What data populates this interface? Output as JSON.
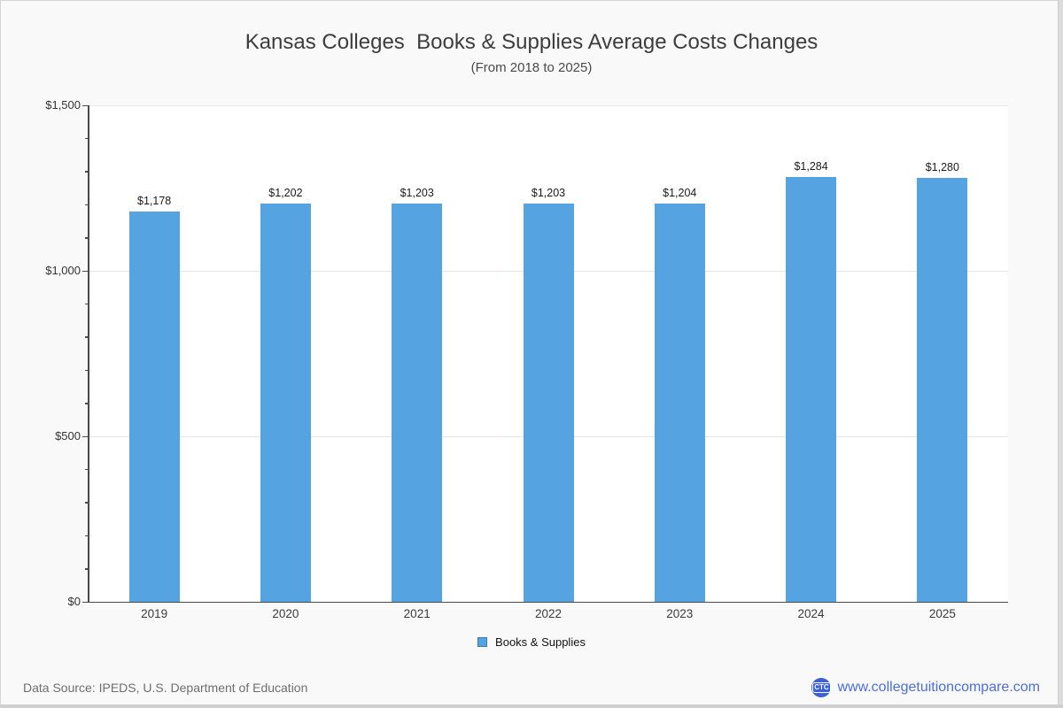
{
  "title": "Kansas Colleges  Books & Supplies Average Costs Changes",
  "subtitle": "(From 2018 to 2025)",
  "chart_data": {
    "type": "bar",
    "categories": [
      "2019",
      "2020",
      "2021",
      "2022",
      "2023",
      "2024",
      "2025"
    ],
    "series": [
      {
        "name": "Books & Supplies",
        "values": [
          1178,
          1202,
          1203,
          1203,
          1204,
          1284,
          1280
        ],
        "value_labels": [
          "$1,178",
          "$1,202",
          "$1,203",
          "$1,203",
          "$1,204",
          "$1,284",
          "$1,280"
        ]
      }
    ],
    "title": "Kansas Colleges  Books & Supplies Average Costs Changes",
    "subtitle": "(From 2018 to 2025)",
    "xlabel": "",
    "ylabel": "",
    "ylim": [
      0,
      1500
    ],
    "y_major_step": 500,
    "y_minor_step": 100,
    "ytick_labels": [
      "$0",
      "$500",
      "$1,000",
      "$1,500"
    ],
    "grid": true,
    "legend_position": "bottom",
    "bar_color": "#55a3e0"
  },
  "legend": {
    "label": "Books & Supplies",
    "swatch_color": "#55a3e0"
  },
  "footer": {
    "data_source": "Data Source: IPEDS, U.S. Department of Education",
    "logo_text": "CTC",
    "site_label": "www.collegetuitioncompare.com"
  },
  "colors": {
    "bar": "#55a3e0",
    "axis": "#4a4a4a",
    "grid": "#e6e6e6",
    "link_blue": "#4a6edb",
    "logo_blue": "#3b5fd8",
    "background": "#f9f9f9"
  }
}
